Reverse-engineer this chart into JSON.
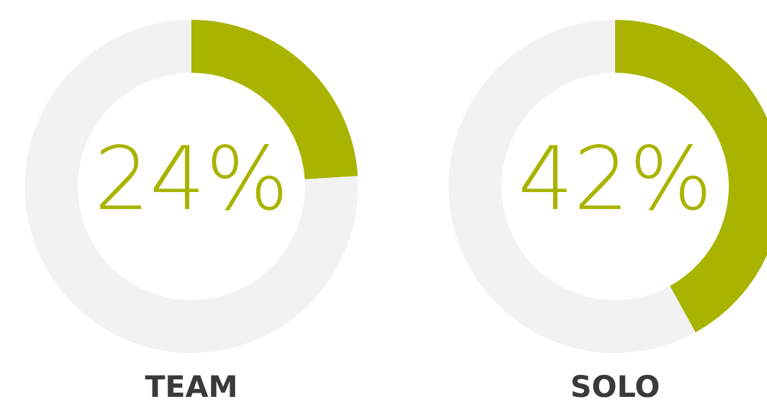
{
  "chart_data": [
    {
      "type": "donut",
      "title": "TEAM",
      "categories": [
        null,
        null
      ],
      "values": [
        24,
        76
      ],
      "colors": [
        "#a8b400",
        "#f2f2f2"
      ],
      "value_labels": [
        "24%",
        null
      ],
      "legend": false
    },
    {
      "type": "donut",
      "title": "SOLO",
      "categories": [
        null,
        null
      ],
      "values": [
        42,
        58
      ],
      "colors": [
        "#a8b400",
        "#f2f2f2"
      ],
      "value_labels": [
        "42%",
        null
      ],
      "legend": false
    }
  ]
}
